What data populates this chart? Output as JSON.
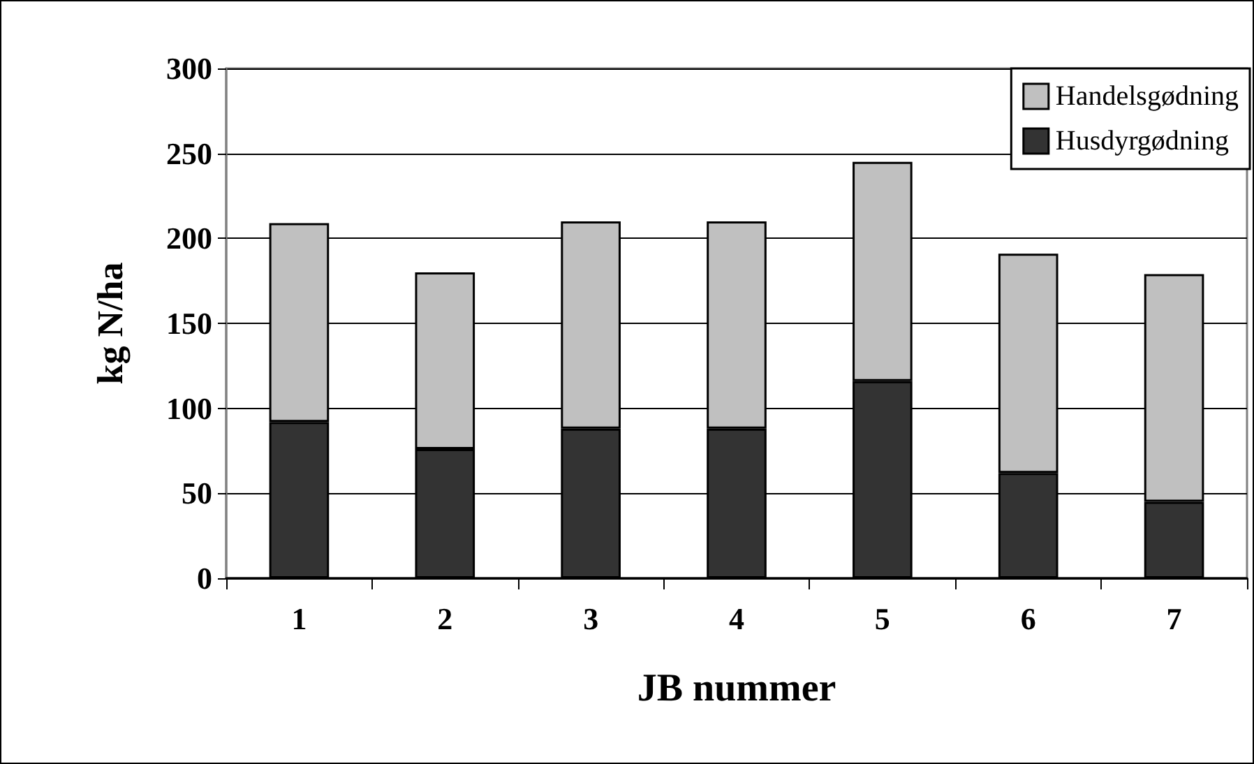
{
  "chart_data": {
    "type": "bar",
    "stacked": true,
    "xlabel": "JB nummer",
    "ylabel": "kg N/ha",
    "categories": [
      "1",
      "2",
      "3",
      "4",
      "5",
      "6",
      "7"
    ],
    "series": [
      {
        "name": "Husdyrgødning",
        "color": "#333333",
        "values": [
          92,
          76,
          88,
          88,
          116,
          62,
          45
        ]
      },
      {
        "name": "Handelsgødning",
        "color": "#c0c0c0",
        "values": [
          117,
          104,
          122,
          122,
          129,
          129,
          134
        ]
      }
    ],
    "ylim": [
      0,
      300
    ],
    "yticks": [
      0,
      50,
      100,
      150,
      200,
      250,
      300
    ],
    "grid": "y",
    "legend": "top right"
  }
}
